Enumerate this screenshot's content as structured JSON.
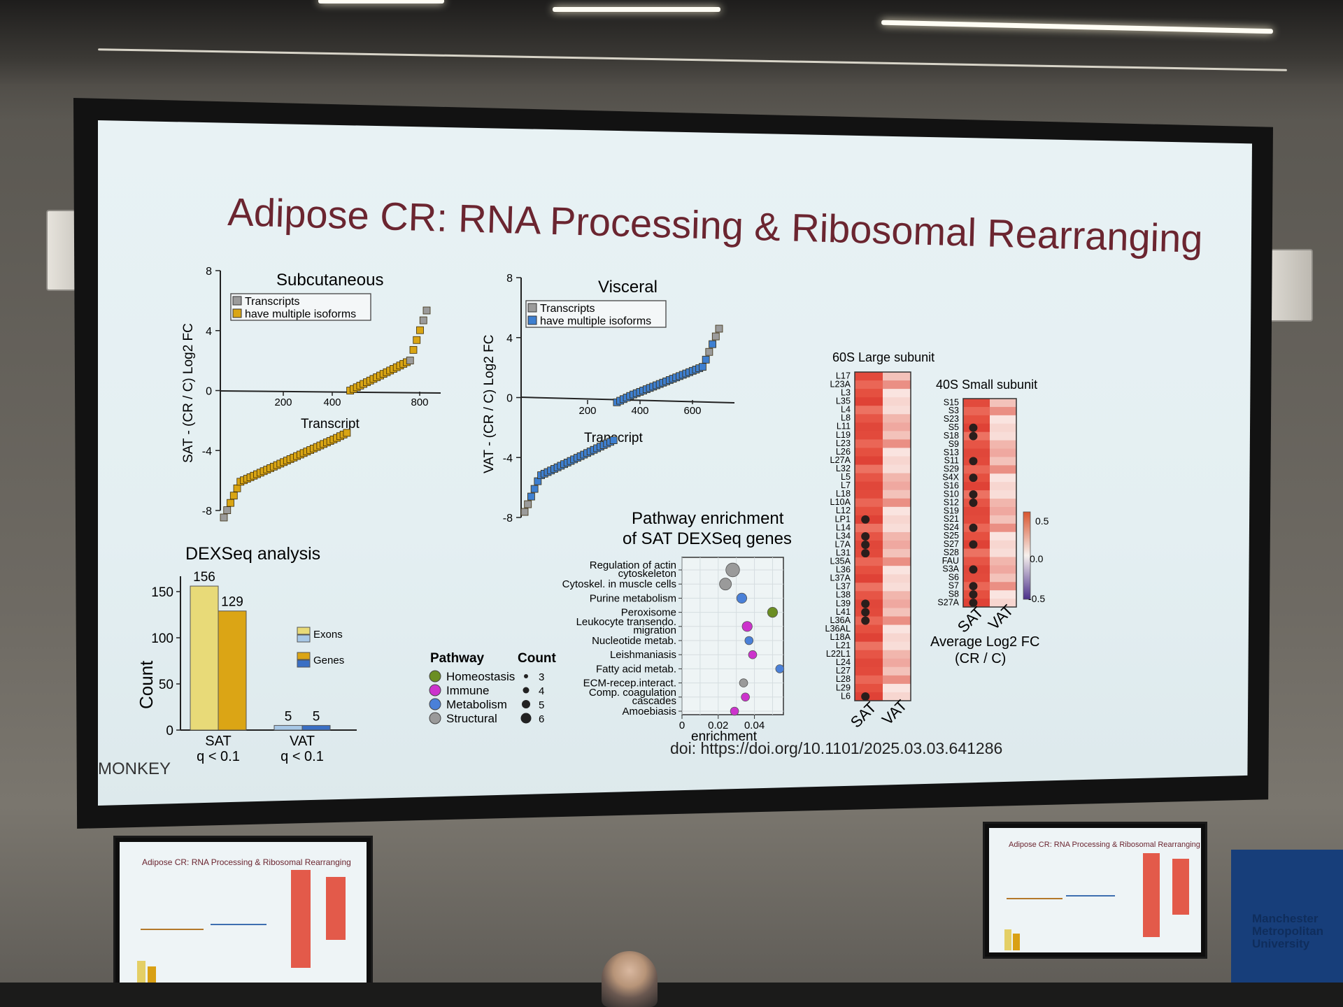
{
  "slide": {
    "title": "Adipose CR: RNA Processing & Ribosomal Rearranging",
    "watermark": "MONKEY",
    "doi": "doi: https://doi.org/10.1101/2025.03.03.641286"
  },
  "sat_plot": {
    "title": "Subcutaneous",
    "ylabel": "SAT - (CR / C) Log2 FC",
    "xlabel": "Transcript",
    "y_ticks": [
      "8",
      "4",
      "0",
      "-4",
      "-8"
    ],
    "x_ticks": [
      "200",
      "400",
      "800"
    ],
    "legend": [
      "Transcripts",
      "have multiple isoforms"
    ]
  },
  "vat_plot": {
    "title": "Visceral",
    "ylabel": "VAT - (CR / C) Log2 FC",
    "xlabel": "Transcript",
    "y_ticks": [
      "8",
      "4",
      "0",
      "-4",
      "-8"
    ],
    "x_ticks": [
      "200",
      "400",
      "600"
    ],
    "legend": [
      "Transcripts",
      "have multiple isoforms"
    ]
  },
  "dexseq": {
    "title": "DEXSeq analysis",
    "ylabel": "Count",
    "y_ticks": [
      "150",
      "100",
      "50",
      "0"
    ],
    "groups": [
      {
        "label": "SAT",
        "sublabel": "q < 0.1",
        "exons": 156,
        "genes": 129
      },
      {
        "label": "VAT",
        "sublabel": "q < 0.1",
        "exons": 5,
        "genes": 5
      }
    ],
    "legend": [
      "Exons",
      "Genes"
    ]
  },
  "pathway": {
    "title_line1": "Pathway enrichment",
    "title_line2": "of SAT DEXSeq genes",
    "xlabel": "enrichment",
    "x_ticks": [
      "0",
      "0.02",
      "0.04"
    ],
    "rows": [
      {
        "label": "Regulation of actin cytoskeleton",
        "line1": "Regulation of actin",
        "line2": "cytoskeleton",
        "value": 0.028,
        "type": "Structural",
        "count": 6
      },
      {
        "label": "Cytoskel. in muscle cells",
        "line1": "Cytoskel. in muscle cells",
        "line2": "",
        "value": 0.024,
        "type": "Structural",
        "count": 5
      },
      {
        "label": "Purine metabolism",
        "line1": "Purine metabolism",
        "line2": "",
        "value": 0.033,
        "type": "Metabolism",
        "count": 4
      },
      {
        "label": "Peroxisome",
        "line1": "Peroxisome",
        "line2": "",
        "value": 0.05,
        "type": "Homeostasis",
        "count": 4
      },
      {
        "label": "Leukocyte transendo. migration",
        "line1": "Leukocyte transendo.",
        "line2": "migration",
        "value": 0.036,
        "type": "Immune",
        "count": 4
      },
      {
        "label": "Nucleotide metab.",
        "line1": "Nucleotide metab.",
        "line2": "",
        "value": 0.037,
        "type": "Metabolism",
        "count": 3
      },
      {
        "label": "Leishmaniasis",
        "line1": "Leishmaniasis",
        "line2": "",
        "value": 0.039,
        "type": "Immune",
        "count": 3
      },
      {
        "label": "Fatty acid metab.",
        "line1": "Fatty acid metab.",
        "line2": "",
        "value": 0.054,
        "type": "Metabolism",
        "count": 3
      },
      {
        "label": "ECM-recep.interact.",
        "line1": "ECM-recep.interact.",
        "line2": "",
        "value": 0.034,
        "type": "Structural",
        "count": 3
      },
      {
        "label": "Comp. coagulation cascades",
        "line1": "Comp. coagulation",
        "line2": "cascades",
        "value": 0.035,
        "type": "Immune",
        "count": 3
      },
      {
        "label": "Amoebiasis",
        "line1": "Amoebiasis",
        "line2": "",
        "value": 0.029,
        "type": "Immune",
        "count": 3
      }
    ],
    "legend_pathway_title": "Pathway",
    "legend_pathways": [
      {
        "name": "Homeostasis",
        "color": "#6b8e23"
      },
      {
        "name": "Immune",
        "color": "#cc33cc"
      },
      {
        "name": "Metabolism",
        "color": "#4a80d8"
      },
      {
        "name": "Structural",
        "color": "#9a9a9a"
      }
    ],
    "legend_count_title": "Count",
    "legend_counts": [
      "3",
      "4",
      "5",
      "6"
    ]
  },
  "heatmap_60s": {
    "title": "60S Large subunit",
    "columns": [
      "SAT",
      "VAT"
    ],
    "rows": [
      "L17",
      "L23A",
      "L3",
      "L35",
      "L4",
      "L8",
      "L11",
      "L19",
      "L23",
      "L26",
      "L27A",
      "L32",
      "L5",
      "L7",
      "L18",
      "L10A",
      "L12",
      "LP1",
      "L14",
      "L34",
      "L7A",
      "L31",
      "L35A",
      "L36",
      "L37A",
      "L37",
      "L38",
      "L39",
      "L41",
      "L36A",
      "L36AL",
      "L18A",
      "L21",
      "L22L1",
      "L24",
      "L27",
      "L28",
      "L29",
      "L6"
    ],
    "dots": [
      "LP1",
      "L34",
      "L7A",
      "L31",
      "L39",
      "L41",
      "L36A",
      "L6"
    ]
  },
  "heatmap_40s": {
    "title": "40S Small subunit",
    "columns": [
      "SAT",
      "VAT"
    ],
    "rows": [
      "S15",
      "S3",
      "S23",
      "S5",
      "S18",
      "S9",
      "S13",
      "S11",
      "S29",
      "S4X",
      "S16",
      "S10",
      "S12",
      "S19",
      "S21",
      "S24",
      "S25",
      "S27",
      "S28",
      "FAU",
      "S3A",
      "S6",
      "S7",
      "S8",
      "S27A"
    ],
    "dots": [
      "S5",
      "S18",
      "S11",
      "S4X",
      "S10",
      "S12",
      "S24",
      "S27",
      "S3A",
      "S7",
      "S8",
      "S27A"
    ],
    "colorbar_ticks": [
      "0.5",
      "0.0",
      "-0.5"
    ],
    "caption_line1": "Average Log2 FC",
    "caption_line2": "(CR / C)"
  },
  "monitors": {
    "left_title": "Adipose CR: RNA Processing & Ribosomal Rearranging",
    "right_title": "Adipose CR: RNA Processing & Ribosomal Rearranging"
  },
  "banner": {
    "text": "Manchester Metropolitan University"
  },
  "colors": {
    "accent_title": "#6b2530",
    "sat_gold": "#d9a514",
    "vat_blue": "#3e7fd0",
    "heat_red": "#e24a3c"
  }
}
